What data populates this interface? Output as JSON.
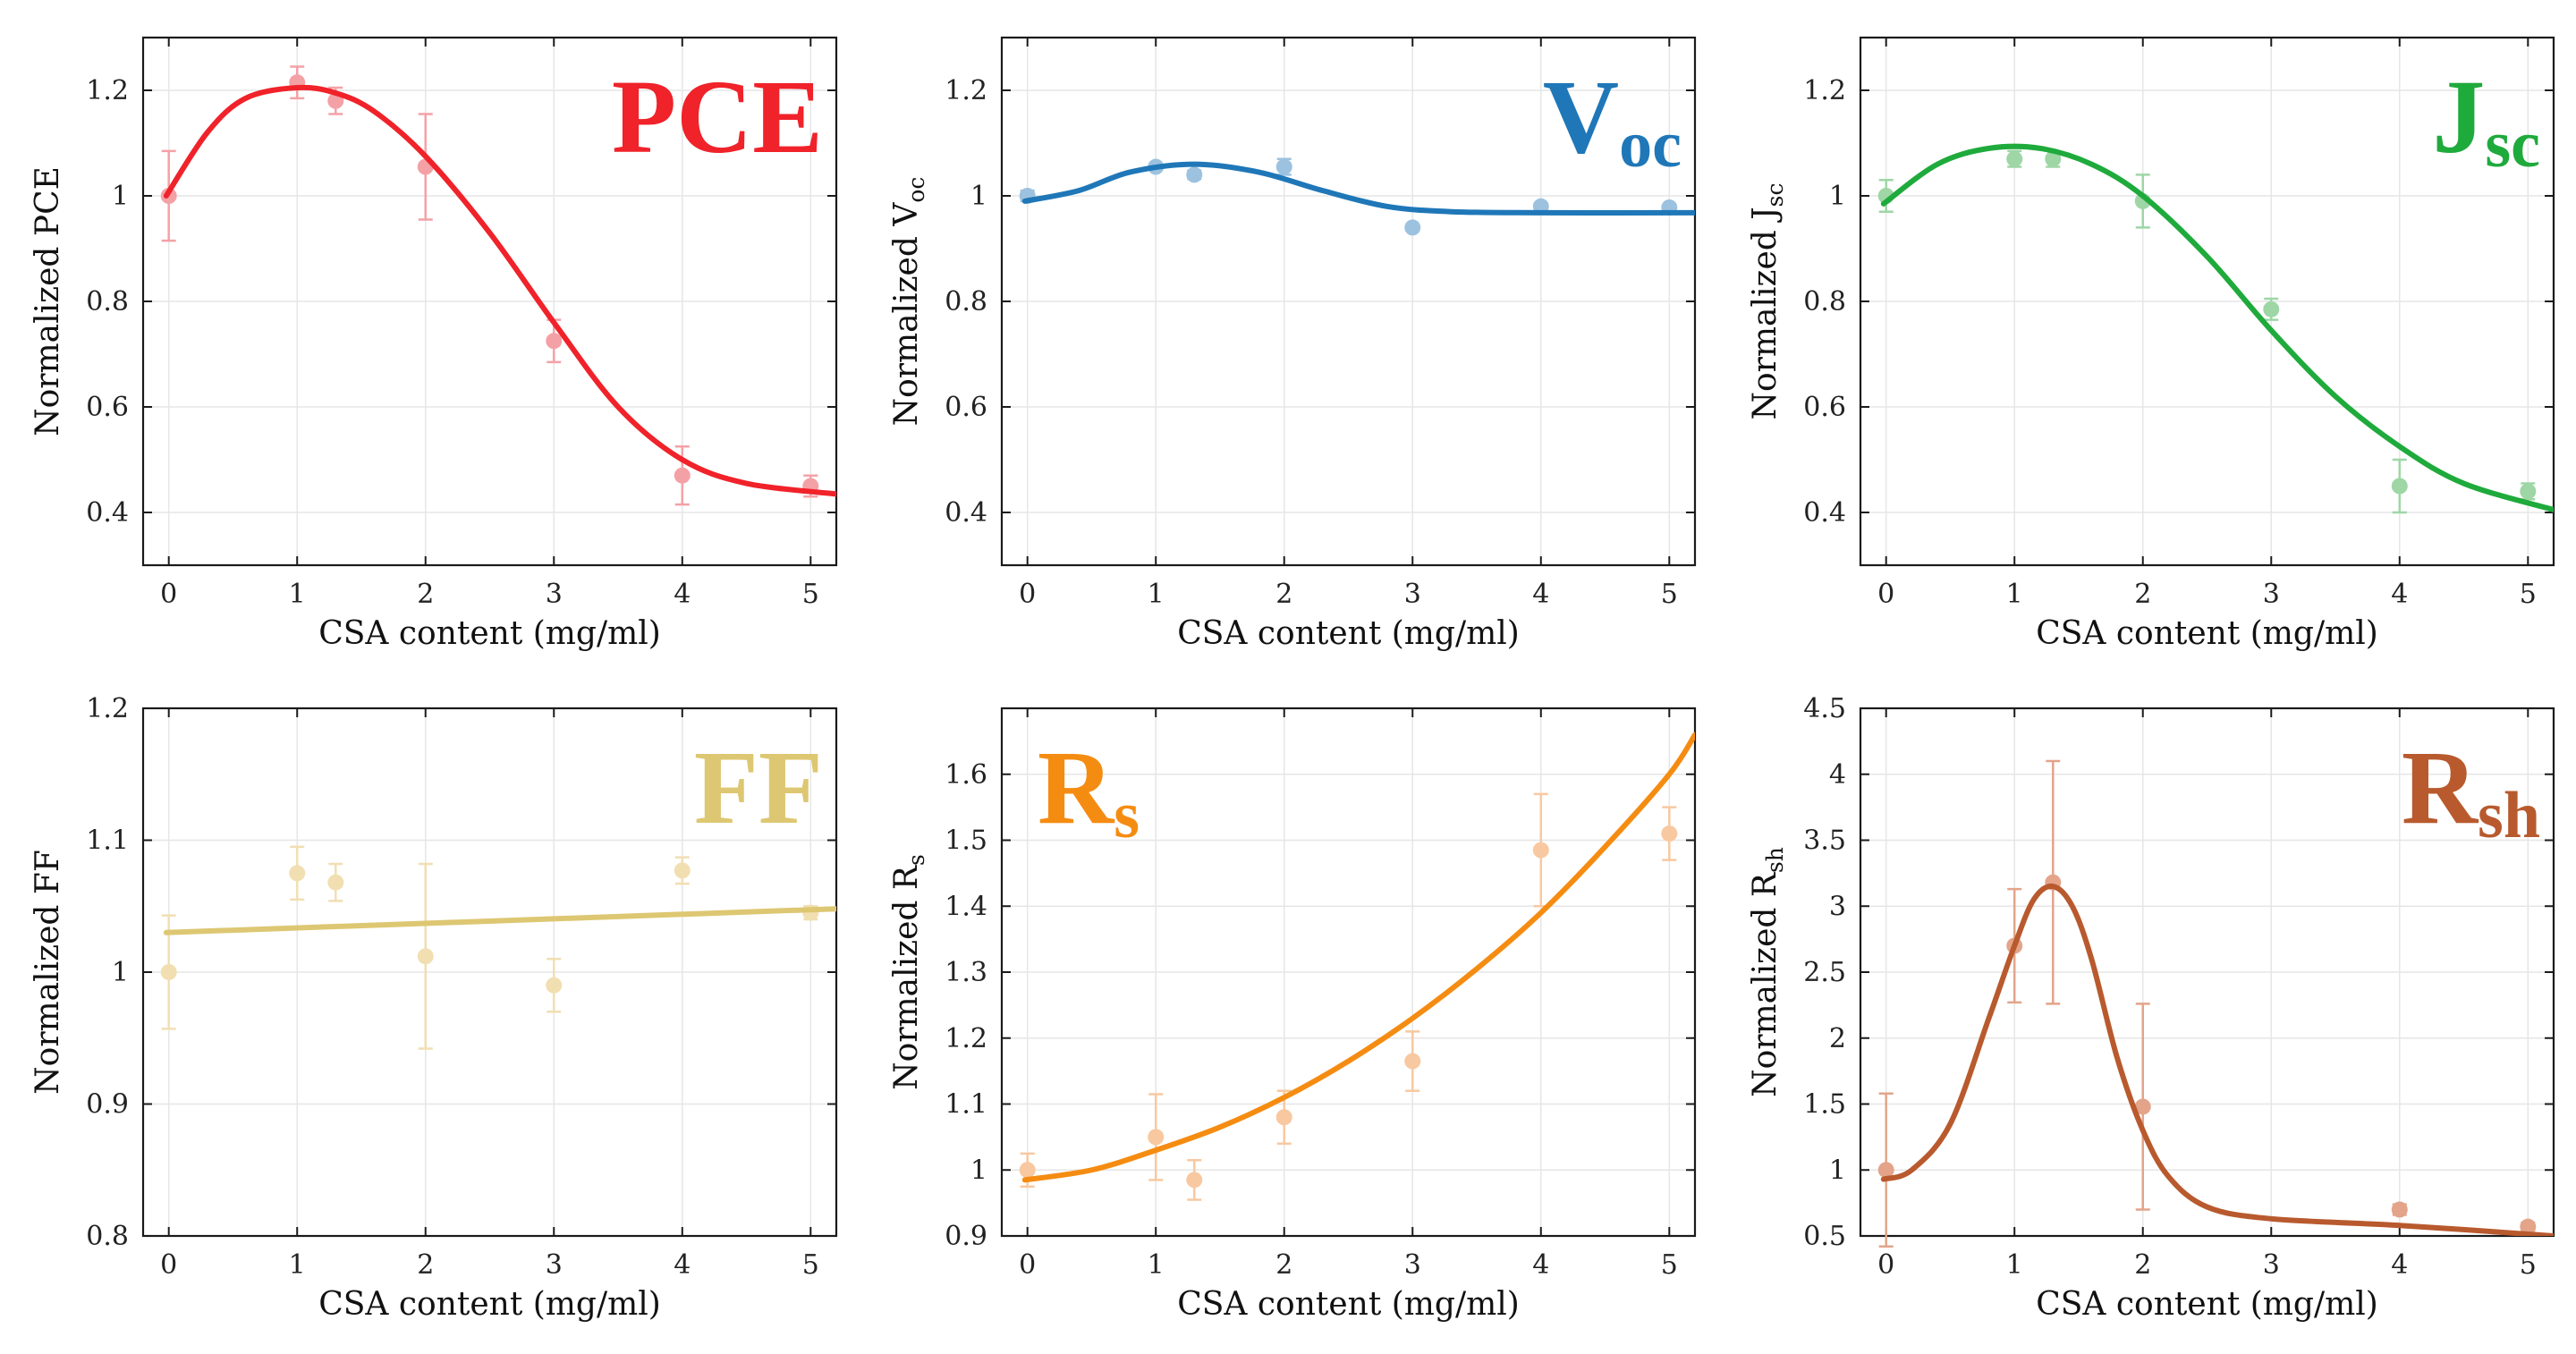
{
  "chart_data": [
    {
      "type": "scatter",
      "title_main": "PCE",
      "title_sub": "",
      "color": "#f0222a",
      "marker_color": "#f4a1a6",
      "xlabel": "CSA content (mg/ml)",
      "ylabel_main": "Normalized PCE",
      "ylabel_sub": "",
      "xlim": [
        -0.2,
        5.2
      ],
      "ylim": [
        0.3,
        1.3
      ],
      "xticks": [
        "0",
        "1",
        "2",
        "3",
        "4",
        "5"
      ],
      "yticks": [
        "0.4",
        "0.6",
        "0.8",
        "1",
        "1.2"
      ],
      "points": [
        {
          "x": 0,
          "y": 1.0,
          "err": 0.085
        },
        {
          "x": 1,
          "y": 1.215,
          "err": 0.03
        },
        {
          "x": 1.3,
          "y": 1.18,
          "err": 0.025
        },
        {
          "x": 2,
          "y": 1.055,
          "err": 0.1
        },
        {
          "x": 3,
          "y": 0.725,
          "err": 0.04
        },
        {
          "x": 4,
          "y": 0.47,
          "err": 0.055
        },
        {
          "x": 5,
          "y": 0.45,
          "err": 0.02
        }
      ],
      "fit": [
        [
          -0.02,
          1.0
        ],
        [
          0.3,
          1.12
        ],
        [
          0.6,
          1.185
        ],
        [
          1.0,
          1.205
        ],
        [
          1.3,
          1.195
        ],
        [
          1.6,
          1.16
        ],
        [
          2.0,
          1.075
        ],
        [
          2.5,
          0.93
        ],
        [
          3.0,
          0.76
        ],
        [
          3.5,
          0.6
        ],
        [
          4.0,
          0.5
        ],
        [
          4.5,
          0.455
        ],
        [
          5.2,
          0.435
        ]
      ]
    },
    {
      "type": "scatter",
      "title_main": "V",
      "title_sub": "oc",
      "color": "#1f77b8",
      "marker_color": "#9cc2e0",
      "xlabel": "CSA content (mg/ml)",
      "ylabel_main": "Normalized V",
      "ylabel_sub": "oc",
      "xlim": [
        -0.2,
        5.2
      ],
      "ylim": [
        0.3,
        1.3
      ],
      "xticks": [
        "0",
        "1",
        "2",
        "3",
        "4",
        "5"
      ],
      "yticks": [
        "0.4",
        "0.6",
        "0.8",
        "1",
        "1.2"
      ],
      "points": [
        {
          "x": 0,
          "y": 1.0,
          "err": 0.01
        },
        {
          "x": 1,
          "y": 1.055,
          "err": 0.005
        },
        {
          "x": 1.3,
          "y": 1.04,
          "err": 0.008
        },
        {
          "x": 2,
          "y": 1.055,
          "err": 0.015
        },
        {
          "x": 3,
          "y": 0.94,
          "err": 0.005
        },
        {
          "x": 4,
          "y": 0.98,
          "err": 0.005
        },
        {
          "x": 5,
          "y": 0.978,
          "err": 0.005
        }
      ],
      "fit": [
        [
          -0.02,
          0.99
        ],
        [
          0.4,
          1.01
        ],
        [
          0.8,
          1.045
        ],
        [
          1.3,
          1.06
        ],
        [
          1.8,
          1.045
        ],
        [
          2.3,
          1.01
        ],
        [
          2.8,
          0.98
        ],
        [
          3.3,
          0.97
        ],
        [
          4.0,
          0.968
        ],
        [
          5.2,
          0.968
        ]
      ]
    },
    {
      "type": "scatter",
      "title_main": "J",
      "title_sub": "sc",
      "color": "#1faa3c",
      "marker_color": "#9ed6a6",
      "xlabel": "CSA content (mg/ml)",
      "ylabel_main": "Normalized J",
      "ylabel_sub": "sc",
      "xlim": [
        -0.2,
        5.2
      ],
      "ylim": [
        0.3,
        1.3
      ],
      "xticks": [
        "0",
        "1",
        "2",
        "3",
        "4",
        "5"
      ],
      "yticks": [
        "0.4",
        "0.6",
        "0.8",
        "1",
        "1.2"
      ],
      "points": [
        {
          "x": 0,
          "y": 1.0,
          "err": 0.03
        },
        {
          "x": 1,
          "y": 1.07,
          "err": 0.015
        },
        {
          "x": 1.3,
          "y": 1.07,
          "err": 0.015
        },
        {
          "x": 2,
          "y": 0.99,
          "err": 0.05
        },
        {
          "x": 3,
          "y": 0.785,
          "err": 0.02
        },
        {
          "x": 4,
          "y": 0.45,
          "err": 0.05
        },
        {
          "x": 5,
          "y": 0.44,
          "err": 0.015
        }
      ],
      "fit": [
        [
          -0.02,
          0.985
        ],
        [
          0.4,
          1.06
        ],
        [
          0.8,
          1.09
        ],
        [
          1.2,
          1.09
        ],
        [
          1.6,
          1.06
        ],
        [
          2.0,
          1.0
        ],
        [
          2.5,
          0.885
        ],
        [
          3.0,
          0.745
        ],
        [
          3.5,
          0.62
        ],
        [
          4.0,
          0.525
        ],
        [
          4.5,
          0.455
        ],
        [
          5.2,
          0.405
        ]
      ]
    },
    {
      "type": "scatter",
      "title_main": "FF",
      "title_sub": "",
      "color": "#ddc772",
      "marker_color": "#f1dfb2",
      "xlabel": "CSA content (mg/ml)",
      "ylabel_main": "Normalized FF",
      "ylabel_sub": "",
      "xlim": [
        -0.2,
        5.2
      ],
      "ylim": [
        0.8,
        1.2
      ],
      "xticks": [
        "0",
        "1",
        "2",
        "3",
        "4",
        "5"
      ],
      "yticks": [
        "0.8",
        "0.9",
        "1",
        "1.1",
        "1.2"
      ],
      "points": [
        {
          "x": 0,
          "y": 1.0,
          "err": 0.043
        },
        {
          "x": 1,
          "y": 1.075,
          "err": 0.02
        },
        {
          "x": 1.3,
          "y": 1.068,
          "err": 0.014
        },
        {
          "x": 2,
          "y": 1.012,
          "err": 0.07
        },
        {
          "x": 3,
          "y": 0.99,
          "err": 0.02
        },
        {
          "x": 4,
          "y": 1.077,
          "err": 0.01
        },
        {
          "x": 5,
          "y": 1.045,
          "err": 0.005
        }
      ],
      "fit": [
        [
          -0.02,
          1.03
        ],
        [
          5.2,
          1.048
        ]
      ]
    },
    {
      "type": "scatter",
      "title_main": "R",
      "title_sub": "s",
      "color": "#f58c12",
      "marker_color": "#f8c8a0",
      "xlabel": "CSA content (mg/ml)",
      "ylabel_main": "Normalized R",
      "ylabel_sub": "s",
      "xlim": [
        -0.2,
        5.2
      ],
      "ylim": [
        0.9,
        1.7
      ],
      "xticks": [
        "0",
        "1",
        "2",
        "3",
        "4",
        "5"
      ],
      "yticks": [
        "0.9",
        "1",
        "1.1",
        "1.2",
        "1.3",
        "1.4",
        "1.5",
        "1.6"
      ],
      "points": [
        {
          "x": 0,
          "y": 1.0,
          "err": 0.025
        },
        {
          "x": 1,
          "y": 1.05,
          "err": 0.065
        },
        {
          "x": 1.3,
          "y": 0.985,
          "err": 0.03
        },
        {
          "x": 2,
          "y": 1.08,
          "err": 0.04
        },
        {
          "x": 3,
          "y": 1.165,
          "err": 0.045
        },
        {
          "x": 4,
          "y": 1.485,
          "err": 0.085
        },
        {
          "x": 5,
          "y": 1.51,
          "err": 0.04
        }
      ],
      "fit": [
        [
          -0.02,
          0.985
        ],
        [
          0.5,
          1.0
        ],
        [
          1.0,
          1.03
        ],
        [
          1.5,
          1.065
        ],
        [
          2.0,
          1.11
        ],
        [
          2.5,
          1.165
        ],
        [
          3.0,
          1.23
        ],
        [
          3.5,
          1.305
        ],
        [
          4.0,
          1.39
        ],
        [
          4.5,
          1.49
        ],
        [
          5.0,
          1.6
        ],
        [
          5.2,
          1.66
        ]
      ]
    },
    {
      "type": "scatter",
      "title_main": "R",
      "title_sub": "sh",
      "color": "#b85a2e",
      "marker_color": "#e3a48a",
      "xlabel": "CSA content (mg/ml)",
      "ylabel_main": "Normalized R",
      "ylabel_sub": "sh",
      "xlim": [
        -0.2,
        5.2
      ],
      "ylim": [
        0.5,
        4.5
      ],
      "xticks": [
        "0",
        "1",
        "2",
        "3",
        "4",
        "5"
      ],
      "yticks": [
        "0.5",
        "1",
        "1.5",
        "2",
        "2.5",
        "3",
        "3.5",
        "4",
        "4.5"
      ],
      "points": [
        {
          "x": 0,
          "y": 1.0,
          "err": 0.58
        },
        {
          "x": 1,
          "y": 2.7,
          "err": 0.43
        },
        {
          "x": 1.3,
          "y": 3.18,
          "err": 0.92
        },
        {
          "x": 2,
          "y": 1.48,
          "err": 0.78
        },
        {
          "x": 4,
          "y": 0.7,
          "err": 0.04
        },
        {
          "x": 5,
          "y": 0.57,
          "err": 0.03
        }
      ],
      "fit": [
        [
          -0.02,
          0.93
        ],
        [
          0.2,
          1.0
        ],
        [
          0.5,
          1.35
        ],
        [
          0.8,
          2.15
        ],
        [
          1.0,
          2.7
        ],
        [
          1.15,
          3.05
        ],
        [
          1.3,
          3.15
        ],
        [
          1.45,
          3.0
        ],
        [
          1.6,
          2.6
        ],
        [
          1.8,
          1.85
        ],
        [
          2.0,
          1.3
        ],
        [
          2.2,
          0.95
        ],
        [
          2.5,
          0.72
        ],
        [
          3.0,
          0.63
        ],
        [
          4.0,
          0.58
        ],
        [
          5.2,
          0.5
        ]
      ]
    }
  ]
}
